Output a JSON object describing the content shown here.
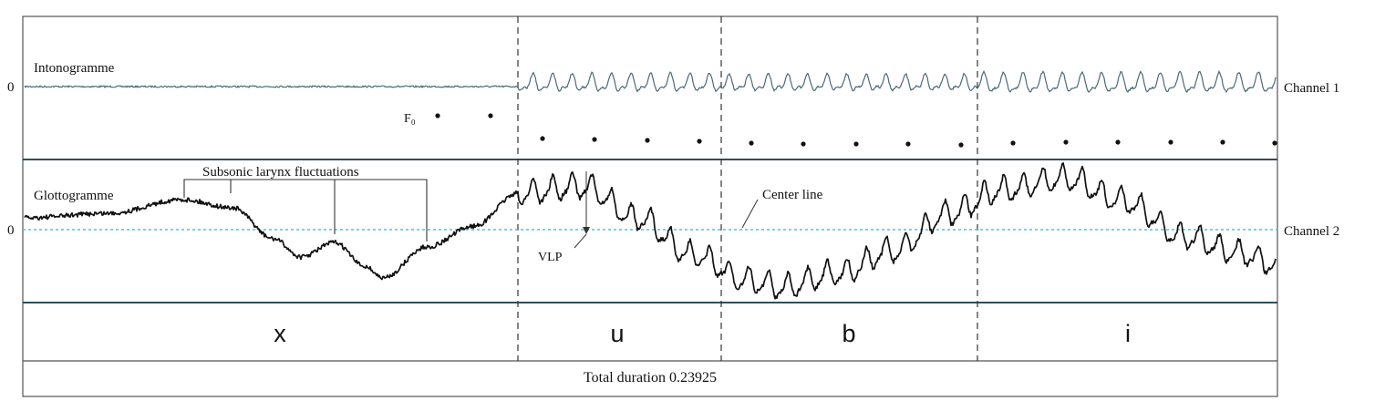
{
  "panels": {
    "intonogramme": {
      "label": "Intonogramme",
      "zero_label": "0",
      "channel_label": "Channel 1",
      "f0_label": "F₀"
    },
    "glottogramme": {
      "label": "Glottogramme",
      "zero_label": "0",
      "channel_label": "Channel 2",
      "subsonic_label": "Subsonic larynx fluctuations",
      "center_line_label": "Center line",
      "vlp_label": "VLP"
    }
  },
  "segments": [
    {
      "label": "x"
    },
    {
      "label": "u"
    },
    {
      "label": "b"
    },
    {
      "label": "i"
    }
  ],
  "footer": {
    "total_duration": "Total duration 0.23925"
  },
  "colors": {
    "intonogramme_trace": "#4a6a78",
    "glottogramme_trace": "#111111",
    "center_line": "#4cc3e0",
    "frame": "#2d4f5c",
    "separator": "#333333"
  }
}
